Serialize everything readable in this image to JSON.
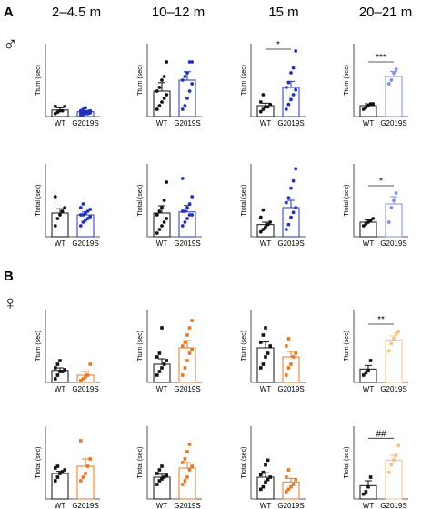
{
  "panel_labels": {
    "A": "A",
    "B": "B"
  },
  "column_headers": [
    "2–4.5 m",
    "10–12 m",
    "15 m",
    "20–21 m"
  ],
  "sex_symbols": {
    "male": "♂",
    "female": "♀"
  },
  "xlabels": [
    "WT",
    "G2019S"
  ],
  "colors": {
    "wt": "#111111",
    "male_mut": "#2233bb",
    "male_mut_pale": "#7f8ee6",
    "female_mut": "#e87722",
    "female_mut_pale": "#f6c27a"
  },
  "chart_data": [
    {
      "id": "A-turn-1",
      "type": "bar",
      "ylabel": "Tturn (sec)",
      "ylim": [
        0,
        50
      ],
      "categories": [
        "WT",
        "G2019S"
      ],
      "means": [
        4.5,
        3.3
      ],
      "sem": [
        1.5,
        0.8
      ],
      "sig": "",
      "points": [
        [
          2,
          3,
          4,
          4,
          7,
          7
        ],
        [
          1,
          1.5,
          2,
          2,
          2.5,
          2.5,
          3,
          3,
          3.5,
          4,
          4,
          5,
          6
        ]
      ]
    },
    {
      "id": "A-turn-2",
      "type": "bar",
      "ylabel": "Tturn (sec)",
      "ylim": [
        0,
        20
      ],
      "categories": [
        "WT",
        "G2019S"
      ],
      "means": [
        7,
        10
      ],
      "sem": [
        2.3,
        2.3
      ],
      "sig": "",
      "points": [
        [
          2,
          3,
          4,
          5,
          6,
          7,
          8,
          10,
          11,
          15
        ],
        [
          2,
          3,
          5,
          7,
          9,
          10,
          11,
          12,
          15,
          15
        ]
      ]
    },
    {
      "id": "A-turn-3",
      "type": "bar",
      "ylabel": "Tturn (sec)",
      "ylim": [
        0,
        30
      ],
      "categories": [
        "WT",
        "G2019S"
      ],
      "means": [
        4.5,
        12
      ],
      "sem": [
        1,
        2.5
      ],
      "sig": "*",
      "points": [
        [
          2,
          3,
          4,
          4,
          5,
          6,
          9
        ],
        [
          3,
          5,
          7,
          9,
          11,
          12,
          14,
          18,
          20,
          27
        ]
      ]
    },
    {
      "id": "A-turn-4",
      "type": "bar",
      "ylabel": "Tturn (sec)",
      "ylim": [
        0,
        20
      ],
      "categories": [
        "WT",
        "G2019S"
      ],
      "means": [
        3,
        11
      ],
      "sem": [
        0.5,
        1.4
      ],
      "sig": "***",
      "points": [
        [
          2,
          2.5,
          3,
          3.5,
          3.5
        ],
        [
          9,
          10,
          12,
          13
        ]
      ]
    },
    {
      "id": "A-total-1",
      "type": "bar",
      "ylabel": "Ttotal (sec)",
      "ylim": [
        0,
        20
      ],
      "categories": [
        "WT",
        "G2019S"
      ],
      "means": [
        6.5,
        6
      ],
      "sem": [
        1.2,
        0.8
      ],
      "sig": "",
      "points": [
        [
          3,
          5,
          6,
          7,
          8,
          11
        ],
        [
          3,
          4,
          4.5,
          5,
          5.5,
          6,
          6,
          6.5,
          7,
          7.5,
          8,
          9
        ]
      ]
    },
    {
      "id": "A-total-2",
      "type": "bar",
      "ylabel": "Ttotal (sec)",
      "ylim": [
        0,
        20
      ],
      "categories": [
        "WT",
        "G2019S"
      ],
      "means": [
        6.5,
        6.8
      ],
      "sem": [
        2,
        1.8
      ],
      "sig": "",
      "points": [
        [
          1,
          2,
          3,
          4,
          5,
          6,
          7,
          8,
          10,
          15
        ],
        [
          3,
          4,
          5,
          6,
          6,
          7,
          7,
          8,
          9,
          11,
          16
        ]
      ]
    },
    {
      "id": "A-total-3",
      "type": "bar",
      "ylabel": "Ttotal (sec)",
      "ylim": [
        0,
        30
      ],
      "categories": [
        "WT",
        "G2019S"
      ],
      "means": [
        5,
        12
      ],
      "sem": [
        1,
        3
      ],
      "sig": "",
      "points": [
        [
          2,
          3,
          4,
          5,
          6,
          8,
          11
        ],
        [
          3,
          5,
          8,
          10,
          12,
          14,
          16,
          20,
          23,
          28
        ]
      ]
    },
    {
      "id": "A-total-4",
      "type": "bar",
      "ylabel": "Ttotal (sec)",
      "ylim": [
        0,
        20
      ],
      "categories": [
        "WT",
        "G2019S"
      ],
      "means": [
        4,
        9
      ],
      "sem": [
        0.6,
        2
      ],
      "sig": "*",
      "points": [
        [
          3,
          3.5,
          4,
          4.5,
          5
        ],
        [
          4,
          8,
          10,
          12
        ]
      ]
    },
    {
      "id": "B-turn-1",
      "type": "bar",
      "ylabel": "Tturn (sec)",
      "ylim": [
        0,
        20
      ],
      "categories": [
        "WT",
        "G2019S"
      ],
      "means": [
        3.3,
        2
      ],
      "sem": [
        0.7,
        1
      ],
      "sig": "",
      "points": [
        [
          1,
          2,
          3,
          3,
          3.5,
          4,
          5,
          6
        ],
        [
          0.5,
          1,
          1.5,
          2,
          5
        ]
      ]
    },
    {
      "id": "B-turn-2",
      "type": "bar",
      "ylabel": "Tturn (sec)",
      "ylim": [
        0,
        20
      ],
      "categories": [
        "WT",
        "G2019S"
      ],
      "means": [
        5,
        9.5
      ],
      "sem": [
        1.5,
        2
      ],
      "sig": "",
      "points": [
        [
          2,
          3,
          4,
          5,
          6,
          7,
          8,
          15
        ],
        [
          2,
          4,
          6,
          8,
          9,
          10,
          11,
          13,
          15,
          17
        ]
      ]
    },
    {
      "id": "B-turn-3",
      "type": "bar",
      "ylabel": "Tturn (sec)",
      "ylim": [
        0,
        20
      ],
      "categories": [
        "WT",
        "G2019S"
      ],
      "means": [
        9.5,
        7
      ],
      "sem": [
        1.6,
        1.5
      ],
      "sig": "",
      "points": [
        [
          4,
          5,
          7,
          8,
          10,
          11,
          13,
          15
        ],
        [
          2,
          4,
          5,
          7,
          8,
          10,
          12
        ]
      ]
    },
    {
      "id": "B-turn-4",
      "type": "bar",
      "ylabel": "Tturn (sec)",
      "ylim": [
        0,
        30
      ],
      "categories": [
        "WT",
        "G2019S"
      ],
      "means": [
        5.5,
        17.5
      ],
      "sem": [
        1.5,
        1.6
      ],
      "sig": "**",
      "points": [
        [
          3,
          4,
          5,
          9
        ],
        [
          13,
          16,
          18,
          20,
          21
        ]
      ]
    },
    {
      "id": "B-total-1",
      "type": "bar",
      "ylabel": "Ttotal (sec)",
      "ylim": [
        0,
        20
      ],
      "categories": [
        "WT",
        "G2019S"
      ],
      "means": [
        7,
        9
      ],
      "sem": [
        0.6,
        2
      ],
      "sig": "",
      "points": [
        [
          5,
          6,
          7,
          7.5,
          8,
          8.5,
          9
        ],
        [
          5,
          6,
          7,
          9,
          11,
          16
        ]
      ]
    },
    {
      "id": "B-total-2",
      "type": "bar",
      "ylabel": "Ttotal (sec)",
      "ylim": [
        0,
        20
      ],
      "categories": [
        "WT",
        "G2019S"
      ],
      "means": [
        6,
        8.5
      ],
      "sem": [
        0.8,
        1.5
      ],
      "sig": "",
      "points": [
        [
          4,
          5,
          5.5,
          6,
          6.5,
          7,
          8,
          9
        ],
        [
          4,
          5,
          6,
          8,
          9,
          10,
          11,
          13,
          15
        ]
      ]
    },
    {
      "id": "B-total-3",
      "type": "bar",
      "ylabel": "Ttotal (sec)",
      "ylim": [
        0,
        30
      ],
      "categories": [
        "WT",
        "G2019S"
      ],
      "means": [
        9,
        7
      ],
      "sem": [
        1.8,
        1.5
      ],
      "sig": "",
      "points": [
        [
          4,
          5,
          7,
          8,
          9,
          10,
          11,
          14,
          16
        ],
        [
          3,
          4,
          5,
          6,
          8,
          9,
          12
        ]
      ]
    },
    {
      "id": "B-total-4",
      "type": "bar",
      "ylabel": "Ttotal (sec)",
      "ylim": [
        0,
        30
      ],
      "categories": [
        "WT",
        "G2019S"
      ],
      "means": [
        5.5,
        16
      ],
      "sem": [
        2,
        2
      ],
      "sig": "##",
      "points": [
        [
          2,
          3,
          5,
          9
        ],
        [
          11,
          14,
          16,
          18,
          22
        ]
      ]
    }
  ]
}
